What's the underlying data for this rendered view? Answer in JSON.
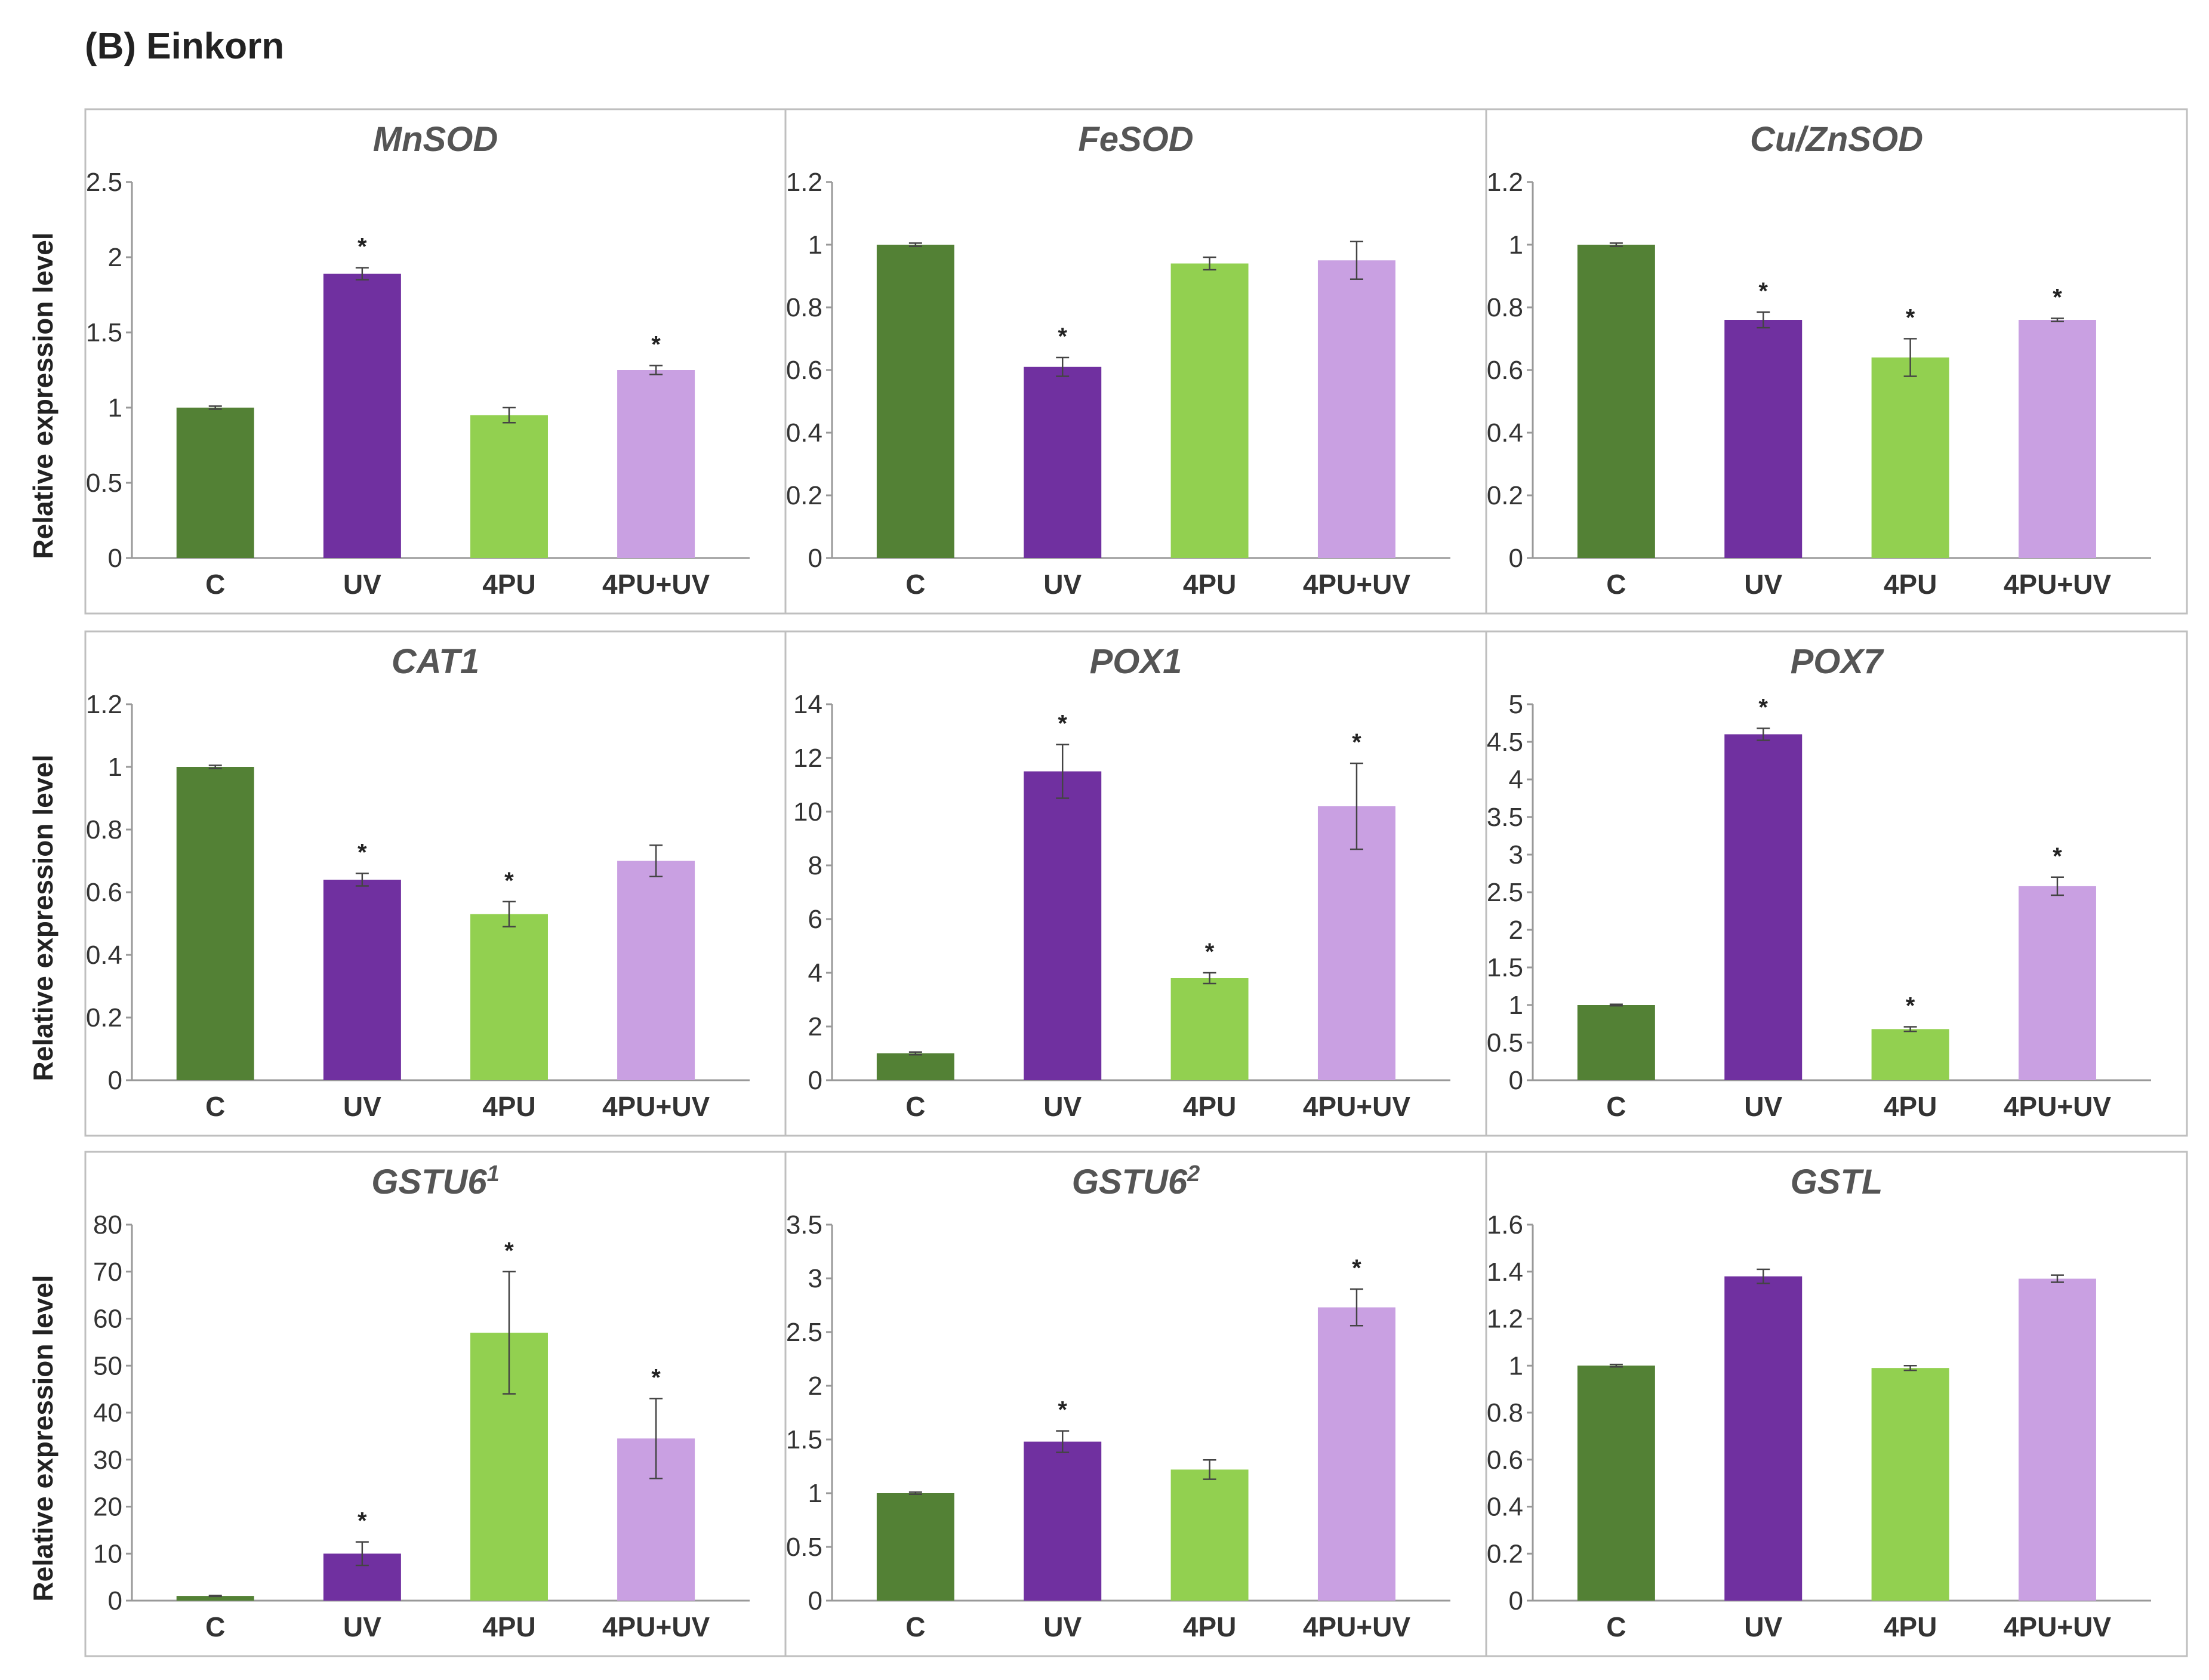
{
  "figure_title": "(B) Einkorn",
  "ylabel": "Relative expression level",
  "colors": {
    "C": "#538135",
    "UV": "#7030A0",
    "4PU": "#92D050",
    "4PU+UV": "#C9A0E2",
    "axis": "#999999",
    "text": "#333333",
    "panel_border": "#BFBFBF"
  },
  "chart_data": [
    {
      "type": "bar",
      "title": "MnSOD",
      "superscript": "",
      "categories": [
        "C",
        "UV",
        "4PU",
        "4PU+UV"
      ],
      "values": [
        1.0,
        1.89,
        0.95,
        1.25
      ],
      "errors": [
        0.01,
        0.04,
        0.05,
        0.03
      ],
      "significant": [
        false,
        true,
        false,
        true
      ],
      "ylim": [
        0,
        2.5
      ],
      "ticks": [
        "0",
        "0.5",
        "1",
        "1.5",
        "2",
        "2.5"
      ]
    },
    {
      "type": "bar",
      "title": "FeSOD",
      "superscript": "",
      "categories": [
        "C",
        "UV",
        "4PU",
        "4PU+UV"
      ],
      "values": [
        1.0,
        0.61,
        0.94,
        0.95
      ],
      "errors": [
        0.005,
        0.03,
        0.02,
        0.06
      ],
      "significant": [
        false,
        true,
        false,
        false
      ],
      "ylim": [
        0,
        1.2
      ],
      "ticks": [
        "0",
        "0.2",
        "0.4",
        "0.6",
        "0.8",
        "1",
        "1.2"
      ]
    },
    {
      "type": "bar",
      "title": "Cu/ZnSOD",
      "superscript": "",
      "categories": [
        "C",
        "UV",
        "4PU",
        "4PU+UV"
      ],
      "values": [
        1.0,
        0.76,
        0.64,
        0.76
      ],
      "errors": [
        0.005,
        0.025,
        0.06,
        0.005
      ],
      "significant": [
        false,
        true,
        true,
        true
      ],
      "ylim": [
        0,
        1.2
      ],
      "ticks": [
        "0",
        "0.2",
        "0.4",
        "0.6",
        "0.8",
        "1",
        "1.2"
      ]
    },
    {
      "type": "bar",
      "title": "CAT1",
      "superscript": "",
      "categories": [
        "C",
        "UV",
        "4PU",
        "4PU+UV"
      ],
      "values": [
        1.0,
        0.64,
        0.53,
        0.7
      ],
      "errors": [
        0.005,
        0.02,
        0.04,
        0.05
      ],
      "significant": [
        false,
        true,
        true,
        false
      ],
      "ylim": [
        0,
        1.2
      ],
      "ticks": [
        "0",
        "0.2",
        "0.4",
        "0.6",
        "0.8",
        "1",
        "1.2"
      ]
    },
    {
      "type": "bar",
      "title": "POX1",
      "superscript": "",
      "categories": [
        "C",
        "UV",
        "4PU",
        "4PU+UV"
      ],
      "values": [
        1.0,
        11.5,
        3.8,
        10.2
      ],
      "errors": [
        0.05,
        1.0,
        0.2,
        1.6
      ],
      "significant": [
        false,
        true,
        true,
        true
      ],
      "ylim": [
        0,
        14
      ],
      "ticks": [
        "0",
        "2",
        "4",
        "6",
        "8",
        "10",
        "12",
        "14"
      ]
    },
    {
      "type": "bar",
      "title": "POX7",
      "superscript": "",
      "categories": [
        "C",
        "UV",
        "4PU",
        "4PU+UV"
      ],
      "values": [
        1.0,
        4.6,
        0.68,
        2.58
      ],
      "errors": [
        0.01,
        0.08,
        0.03,
        0.12
      ],
      "significant": [
        false,
        true,
        true,
        true
      ],
      "ylim": [
        0,
        5
      ],
      "ticks": [
        "0",
        "0.5",
        "1",
        "1.5",
        "2",
        "2.5",
        "3",
        "3.5",
        "4",
        "4.5",
        "5"
      ]
    },
    {
      "type": "bar",
      "title": "GSTU6",
      "superscript": "1",
      "categories": [
        "C",
        "UV",
        "4PU",
        "4PU+UV"
      ],
      "values": [
        1.0,
        10.0,
        57.0,
        34.5
      ],
      "errors": [
        0.1,
        2.5,
        13.0,
        8.5
      ],
      "significant": [
        false,
        true,
        true,
        true
      ],
      "ylim": [
        0,
        80
      ],
      "ticks": [
        "0",
        "10",
        "20",
        "30",
        "40",
        "50",
        "60",
        "70",
        "80"
      ]
    },
    {
      "type": "bar",
      "title": "GSTU6",
      "superscript": "2",
      "categories": [
        "C",
        "UV",
        "4PU",
        "4PU+UV"
      ],
      "values": [
        1.0,
        1.48,
        1.22,
        2.73
      ],
      "errors": [
        0.01,
        0.1,
        0.09,
        0.17
      ],
      "significant": [
        false,
        true,
        false,
        true
      ],
      "ylim": [
        0,
        3.5
      ],
      "ticks": [
        "0",
        "0.5",
        "1",
        "1.5",
        "2",
        "2.5",
        "3",
        "3.5"
      ]
    },
    {
      "type": "bar",
      "title": "GSTL",
      "superscript": "",
      "categories": [
        "C",
        "UV",
        "4PU",
        "4PU+UV"
      ],
      "values": [
        1.0,
        1.38,
        0.99,
        1.37
      ],
      "errors": [
        0.005,
        0.03,
        0.01,
        0.015
      ],
      "significant": [
        false,
        false,
        false,
        false
      ],
      "ylim": [
        0,
        1.6
      ],
      "ticks": [
        "0",
        "0.2",
        "0.4",
        "0.6",
        "0.8",
        "1",
        "1.2",
        "1.4",
        "1.6"
      ]
    }
  ]
}
